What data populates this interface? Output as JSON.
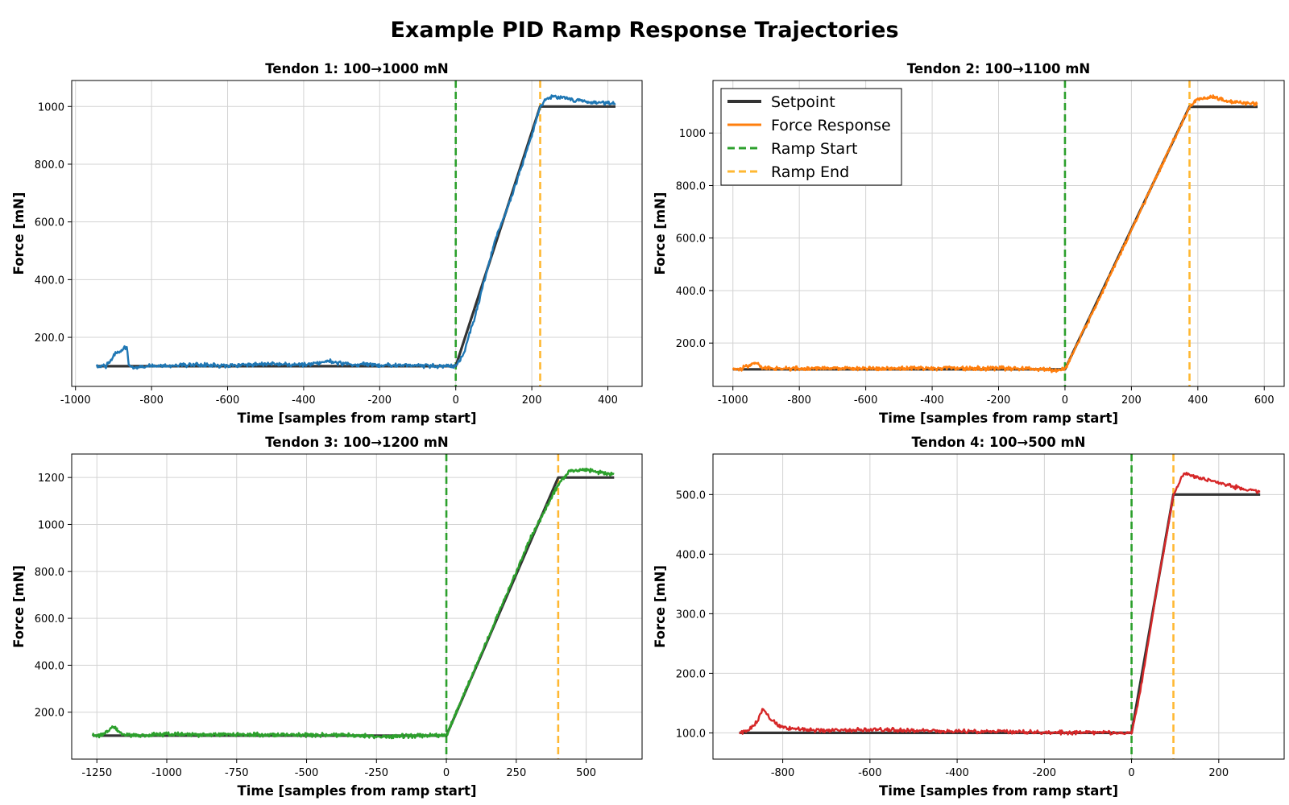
{
  "figure": {
    "title": "Example PID Ramp Response Trajectories"
  },
  "legend": {
    "placement": "top-left of Tendon 2 panel",
    "items": [
      {
        "label": "Setpoint",
        "color": "#333333",
        "style": "solid"
      },
      {
        "label": "Force Response",
        "color": "#ff7f0e",
        "style": "solid"
      },
      {
        "label": "Ramp Start",
        "color": "#2ca02c",
        "style": "dashed"
      },
      {
        "label": "Ramp End",
        "color": "#ffb833",
        "style": "dashed"
      }
    ]
  },
  "chart_data": [
    {
      "type": "line",
      "title": "Tendon 1: 100→1000 mN",
      "xlabel": "Time [samples from ramp start]",
      "ylabel": "Force [mN]",
      "xlim": [
        -1010,
        490
      ],
      "ylim": [
        30,
        1090
      ],
      "xticks": [
        -1000,
        -800,
        -600,
        -400,
        -200,
        0,
        200,
        400
      ],
      "xtick_labels": [
        "-1000",
        "-800",
        "-600",
        "-400",
        "-200",
        "0",
        "200",
        "400"
      ],
      "yticks": [
        200,
        400,
        600,
        800,
        1000
      ],
      "ytick_labels": [
        "200.0",
        "400.0",
        "600.0",
        "800.0",
        "1000"
      ],
      "grid": true,
      "color": "#1f77b4",
      "ramp_start": 0,
      "ramp_end": 222,
      "series": [
        {
          "name": "Setpoint",
          "x": [
            -945,
            0,
            222,
            420
          ],
          "y": [
            100,
            100,
            1000,
            1000
          ]
        },
        {
          "name": "Force Response",
          "x": [
            -945,
            -920,
            -905,
            -895,
            -885,
            -875,
            -865,
            -860,
            -850,
            -800,
            -700,
            -600,
            -500,
            -400,
            -330,
            -300,
            -200,
            -100,
            -10,
            0,
            20,
            50,
            100,
            150,
            200,
            222,
            240,
            260,
            300,
            350,
            420
          ],
          "y": [
            100,
            100,
            120,
            145,
            150,
            160,
            170,
            110,
            95,
            100,
            105,
            102,
            108,
            104,
            118,
            108,
            103,
            102,
            101,
            100,
            140,
            270,
            520,
            700,
            900,
            1000,
            1030,
            1035,
            1025,
            1015,
            1010
          ]
        }
      ]
    },
    {
      "type": "line",
      "title": "Tendon 2: 100→1100 mN",
      "xlabel": "Time [samples from ramp start]",
      "ylabel": "Force [mN]",
      "xlim": [
        -1060,
        660
      ],
      "ylim": [
        35,
        1200
      ],
      "xticks": [
        -1000,
        -800,
        -600,
        -400,
        -200,
        0,
        200,
        400,
        600
      ],
      "xtick_labels": [
        "-1000",
        "-800",
        "-600",
        "-400",
        "-200",
        "0",
        "200",
        "400",
        "600"
      ],
      "yticks": [
        200,
        400,
        600,
        800,
        1000
      ],
      "ytick_labels": [
        "200.0",
        "400.0",
        "600.0",
        "800.0",
        "1000"
      ],
      "grid": true,
      "color": "#ff7f0e",
      "ramp_start": 0,
      "ramp_end": 375,
      "series": [
        {
          "name": "Setpoint",
          "x": [
            -1000,
            0,
            375,
            580
          ],
          "y": [
            100,
            100,
            1100,
            1100
          ]
        },
        {
          "name": "Force Response",
          "x": [
            -1000,
            -980,
            -960,
            -945,
            -930,
            -910,
            -850,
            -700,
            -500,
            -300,
            -100,
            -20,
            0,
            100,
            200,
            300,
            375,
            400,
            450,
            500,
            580
          ],
          "y": [
            100,
            100,
            110,
            118,
            125,
            105,
            102,
            104,
            103,
            104,
            103,
            95,
            100,
            360,
            630,
            900,
            1100,
            1130,
            1135,
            1120,
            1110
          ]
        }
      ]
    },
    {
      "type": "line",
      "title": "Tendon 3: 100→1200 mN",
      "xlabel": "Time [samples from ramp start]",
      "ylabel": "Force [mN]",
      "xlim": [
        -1340,
        700
      ],
      "ylim": [
        0,
        1300
      ],
      "xticks": [
        -1250,
        -1000,
        -750,
        -500,
        -250,
        0,
        250,
        500
      ],
      "xtick_labels": [
        "-1250",
        "-1000",
        "-750",
        "-500",
        "-250",
        "0",
        "250",
        "500"
      ],
      "yticks": [
        200,
        400,
        600,
        800,
        1000,
        1200
      ],
      "ytick_labels": [
        "200.0",
        "400.0",
        "600.0",
        "800.0",
        "1000",
        "1200"
      ],
      "grid": true,
      "color": "#2ca02c",
      "ramp_start": 0,
      "ramp_end": 400,
      "series": [
        {
          "name": "Setpoint",
          "x": [
            -1265,
            0,
            400,
            600
          ],
          "y": [
            100,
            100,
            1200,
            1200
          ]
        },
        {
          "name": "Force Response",
          "x": [
            -1265,
            -1230,
            -1210,
            -1195,
            -1180,
            -1160,
            -1100,
            -1000,
            -900,
            -750,
            -600,
            -500,
            -400,
            -300,
            -250,
            -150,
            -50,
            -10,
            0,
            100,
            200,
            300,
            400,
            440,
            500,
            550,
            600
          ],
          "y": [
            100,
            102,
            118,
            140,
            130,
            105,
            100,
            106,
            104,
            104,
            104,
            103,
            102,
            101,
            95,
            98,
            102,
            100,
            100,
            380,
            660,
            940,
            1170,
            1230,
            1235,
            1220,
            1215
          ]
        }
      ]
    },
    {
      "type": "line",
      "title": "Tendon 4: 100→500 mN",
      "xlabel": "Time [samples from ramp start]",
      "ylabel": "Force [mN]",
      "xlim": [
        -960,
        350
      ],
      "ylim": [
        56,
        568
      ],
      "xticks": [
        -800,
        -600,
        -400,
        -200,
        0,
        200
      ],
      "xtick_labels": [
        "-800",
        "-600",
        "-400",
        "-200",
        "0",
        "200"
      ],
      "yticks": [
        100,
        200,
        300,
        400,
        500
      ],
      "ytick_labels": [
        "100.0",
        "200.0",
        "300.0",
        "400.0",
        "500.0"
      ],
      "grid": true,
      "color": "#d62728",
      "ramp_start": 0,
      "ramp_end": 96,
      "series": [
        {
          "name": "Setpoint",
          "x": [
            -900,
            0,
            96,
            295
          ],
          "y": [
            100,
            100,
            500,
            500
          ]
        },
        {
          "name": "Force Response",
          "x": [
            -900,
            -880,
            -860,
            -845,
            -830,
            -810,
            -780,
            -700,
            -600,
            -500,
            -400,
            -300,
            -200,
            -100,
            -20,
            0,
            20,
            40,
            60,
            80,
            96,
            120,
            150,
            200,
            250,
            295
          ],
          "y": [
            100,
            105,
            118,
            140,
            125,
            112,
            106,
            104,
            106,
            104,
            103,
            102,
            101,
            101,
            100,
            100,
            170,
            260,
            350,
            430,
            500,
            535,
            530,
            520,
            510,
            505
          ]
        }
      ]
    }
  ]
}
